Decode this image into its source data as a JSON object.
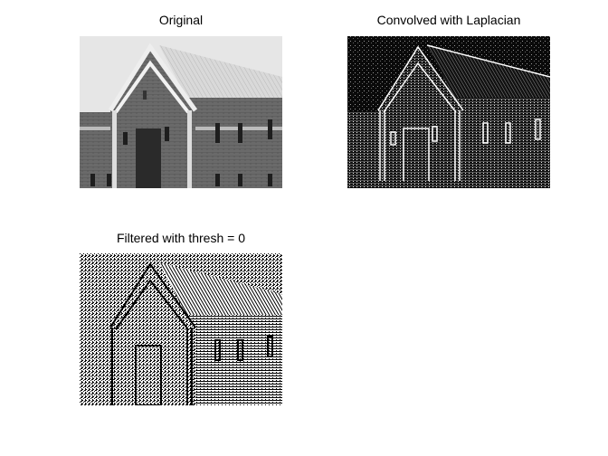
{
  "figure": {
    "background": "#ffffff",
    "panels": [
      {
        "id": "original",
        "title": "Original"
      },
      {
        "id": "laplacian",
        "title": "Convolved with Laplacian"
      },
      {
        "id": "thresh",
        "title": "Filtered with thresh = 0"
      }
    ]
  }
}
